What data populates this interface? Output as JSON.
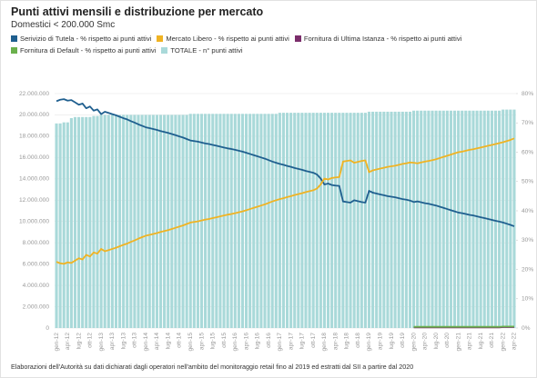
{
  "chart_data": {
    "type": "bar",
    "title": "Punti attivi mensili e distribuzione per mercato",
    "subtitle": "Domestici < 200.000 Smc",
    "note": "Elaborazioni dell'Autorità su dati dichiarati dagli operatori nell'ambito del monitoraggio retail fino al 2019 ed estratti dal SII a partire dal 2020",
    "categories": [
      "gen-12",
      null,
      null,
      "apr-12",
      null,
      null,
      "lug-12",
      null,
      null,
      "ott-12",
      null,
      null,
      "gen-13",
      null,
      null,
      "apr-13",
      null,
      null,
      "lug-13",
      null,
      null,
      "ott-13",
      null,
      null,
      "gen-14",
      null,
      null,
      "apr-14",
      null,
      null,
      "lug-14",
      null,
      null,
      "ott-14",
      null,
      null,
      "gen-15",
      null,
      null,
      "apr-15",
      null,
      null,
      "lug-15",
      null,
      null,
      "ott-15",
      null,
      null,
      "gen-16",
      null,
      null,
      "apr-16",
      null,
      null,
      "lug-16",
      null,
      null,
      "ott-16",
      null,
      null,
      "gen-17",
      null,
      null,
      "apr-17",
      null,
      null,
      "lug-17",
      null,
      null,
      "ott-17",
      null,
      null,
      "gen-18",
      null,
      null,
      "apr-18",
      null,
      null,
      "lug-18",
      null,
      null,
      "ott-18",
      null,
      null,
      "gen-19",
      null,
      null,
      "apr-19",
      null,
      null,
      "lug-19",
      null,
      null,
      "ott-19",
      null,
      null,
      "gen-20",
      null,
      null,
      "apr-20",
      null,
      null,
      "lug-20",
      null,
      null,
      "ott-20",
      null,
      null,
      "gen-21",
      null,
      null,
      "apr-21",
      null,
      null,
      "lug-21",
      null,
      null,
      "ott-21",
      null,
      null,
      "gen-22",
      null,
      null,
      "apr-22"
    ],
    "ylim": [
      0,
      22000000
    ],
    "yticks": [
      0,
      {
        "value": 2000000,
        "label": "2.000.000"
      },
      {
        "value": 4000000,
        "label": "4.000.000"
      },
      {
        "value": 6000000,
        "label": "6.000.000"
      },
      {
        "value": 8000000,
        "label": "8.000.000"
      },
      {
        "value": 10000000,
        "label": "10.000.000"
      },
      {
        "value": 12000000,
        "label": "12.000.000"
      },
      {
        "value": 14000000,
        "label": "14.000.000"
      },
      {
        "value": 16000000,
        "label": "16.000.000"
      },
      {
        "value": 18000000,
        "label": "18.000.000"
      },
      {
        "value": 20000000,
        "label": "20.000.000"
      },
      {
        "value": 22000000,
        "label": "22.000.000"
      }
    ],
    "y2lim": [
      0,
      80
    ],
    "y2ticks": [
      {
        "value": 0,
        "label": "0%"
      },
      {
        "value": 10,
        "label": "10%"
      },
      {
        "value": 20,
        "label": "20%"
      },
      {
        "value": 30,
        "label": "30%"
      },
      {
        "value": 40,
        "label": "40%"
      },
      {
        "value": 50,
        "label": "50%"
      },
      {
        "value": 60,
        "label": "60%"
      },
      {
        "value": 70,
        "label": "70%"
      },
      {
        "value": 80,
        "label": "80%"
      }
    ],
    "grid": true,
    "series": [
      {
        "name": "Serivizio di Tutela - % rispetto ai punti attivi",
        "type": "line",
        "axis": "y2",
        "color": "#1f5f8f",
        "values": [
          77.4,
          77.9,
          78.1,
          77.6,
          77.8,
          77.0,
          76.2,
          76.6,
          75.0,
          75.6,
          74.2,
          74.6,
          73.0,
          73.8,
          73.4,
          73.0,
          72.6,
          72.1,
          71.6,
          71.2,
          70.6,
          70.1,
          69.5,
          69.0,
          68.5,
          68.2,
          67.9,
          67.6,
          67.2,
          66.9,
          66.6,
          66.2,
          65.8,
          65.4,
          65.0,
          64.5,
          64.0,
          63.8,
          63.6,
          63.3,
          63.0,
          62.8,
          62.5,
          62.2,
          61.9,
          61.6,
          61.3,
          61.1,
          60.8,
          60.5,
          60.2,
          59.8,
          59.4,
          59.0,
          58.6,
          58.2,
          57.8,
          57.3,
          56.8,
          56.4,
          56.0,
          55.7,
          55.3,
          55.0,
          54.6,
          54.3,
          54.0,
          53.6,
          53.3,
          53.0,
          52.4,
          51.0,
          49.0,
          49.3,
          48.8,
          48.6,
          48.5,
          43.2,
          43.0,
          42.8,
          43.6,
          43.3,
          43.0,
          42.8,
          46.8,
          46.2,
          45.9,
          45.6,
          45.3,
          45.0,
          44.8,
          44.6,
          44.3,
          44.0,
          43.8,
          43.5,
          43.0,
          43.2,
          42.9,
          42.6,
          42.4,
          42.1,
          41.8,
          41.4,
          41.0,
          40.6,
          40.2,
          39.8,
          39.4,
          39.2,
          38.9,
          38.6,
          38.4,
          38.1,
          37.8,
          37.5,
          37.2,
          36.9,
          36.6,
          36.3,
          36.0,
          35.6,
          35.2,
          34.7
        ]
      },
      {
        "name": "Mercato Libero - % rispetto ai punti attivi",
        "type": "line",
        "axis": "y2",
        "color": "#f0b323",
        "values": [
          22.6,
          22.1,
          21.9,
          22.4,
          22.2,
          23.0,
          23.8,
          23.4,
          25.0,
          24.4,
          25.8,
          25.4,
          27.0,
          26.2,
          26.6,
          27.0,
          27.4,
          27.9,
          28.4,
          28.8,
          29.4,
          29.9,
          30.5,
          31.0,
          31.5,
          31.8,
          32.1,
          32.4,
          32.8,
          33.1,
          33.4,
          33.8,
          34.2,
          34.6,
          35.0,
          35.5,
          36.0,
          36.2,
          36.4,
          36.7,
          37.0,
          37.2,
          37.5,
          37.8,
          38.1,
          38.4,
          38.7,
          38.9,
          39.2,
          39.5,
          39.8,
          40.2,
          40.6,
          41.0,
          41.4,
          41.8,
          42.2,
          42.7,
          43.2,
          43.6,
          44.0,
          44.3,
          44.7,
          45.0,
          45.4,
          45.7,
          46.0,
          46.4,
          46.7,
          47.0,
          47.6,
          49.0,
          51.0,
          50.7,
          51.2,
          51.4,
          51.5,
          56.8,
          57.0,
          57.2,
          56.4,
          56.7,
          57.0,
          57.2,
          53.2,
          53.8,
          54.1,
          54.4,
          54.7,
          55.0,
          55.2,
          55.4,
          55.7,
          56.0,
          56.2,
          56.5,
          56.4,
          56.2,
          56.5,
          56.8,
          57.0,
          57.3,
          57.6,
          58.0,
          58.4,
          58.8,
          59.2,
          59.6,
          60.0,
          60.2,
          60.5,
          60.8,
          61.0,
          61.3,
          61.6,
          61.9,
          62.2,
          62.5,
          62.8,
          63.1,
          63.4,
          63.8,
          64.2,
          64.7
        ]
      },
      {
        "name": "Fornitura di Ultima Istanza - % rispetto ai punti attivi",
        "type": "line",
        "axis": "y2",
        "color": "#7b2d6b",
        "values": [
          null,
          null,
          null,
          null,
          null,
          null,
          null,
          null,
          null,
          null,
          null,
          null,
          null,
          null,
          null,
          null,
          null,
          null,
          null,
          null,
          null,
          null,
          null,
          null,
          null,
          null,
          null,
          null,
          null,
          null,
          null,
          null,
          null,
          null,
          null,
          null,
          null,
          null,
          null,
          null,
          null,
          null,
          null,
          null,
          null,
          null,
          null,
          null,
          null,
          null,
          null,
          null,
          null,
          null,
          null,
          null,
          null,
          null,
          null,
          null,
          null,
          null,
          null,
          null,
          null,
          null,
          null,
          null,
          null,
          null,
          null,
          null,
          null,
          null,
          null,
          null,
          null,
          null,
          null,
          null,
          null,
          null,
          null,
          null,
          null,
          null,
          null,
          null,
          null,
          null,
          null,
          null,
          null,
          null,
          null,
          null,
          0.2,
          0.2,
          0.2,
          0.2,
          0.2,
          0.2,
          0.2,
          0.2,
          0.2,
          0.2,
          0.2,
          0.2,
          0.2,
          0.2,
          0.2,
          0.2,
          0.2,
          0.2,
          0.2,
          0.2,
          0.2,
          0.2,
          0.2,
          0.2,
          0.3,
          0.3,
          0.3,
          0.3
        ]
      },
      {
        "name": "Fornitura di Default - % rispetto ai punti attivi",
        "type": "line",
        "axis": "y2",
        "color": "#6ab04c",
        "values": [
          null,
          null,
          null,
          null,
          null,
          null,
          null,
          null,
          null,
          null,
          null,
          null,
          null,
          null,
          null,
          null,
          null,
          null,
          null,
          null,
          null,
          null,
          null,
          null,
          null,
          null,
          null,
          null,
          null,
          null,
          null,
          null,
          null,
          null,
          null,
          null,
          null,
          null,
          null,
          null,
          null,
          null,
          null,
          null,
          null,
          null,
          null,
          null,
          null,
          null,
          null,
          null,
          null,
          null,
          null,
          null,
          null,
          null,
          null,
          null,
          null,
          null,
          null,
          null,
          null,
          null,
          null,
          null,
          null,
          null,
          null,
          null,
          null,
          null,
          null,
          null,
          null,
          null,
          null,
          null,
          null,
          null,
          null,
          null,
          null,
          null,
          null,
          null,
          null,
          null,
          null,
          null,
          null,
          null,
          null,
          null,
          0.4,
          0.4,
          0.4,
          0.4,
          0.4,
          0.4,
          0.4,
          0.4,
          0.4,
          0.4,
          0.4,
          0.4,
          0.4,
          0.4,
          0.4,
          0.4,
          0.4,
          0.4,
          0.4,
          0.4,
          0.4,
          0.4,
          0.4,
          0.4,
          0.5,
          0.5,
          0.5,
          0.5
        ]
      },
      {
        "name": "TOTALE - n° punti attivi",
        "type": "bar",
        "color": "#a9d9d9",
        "values": [
          19200000,
          19200000,
          19300000,
          19300000,
          19700000,
          19800000,
          19800000,
          19800000,
          19800000,
          19800000,
          19900000,
          19900000,
          20000000,
          20000000,
          20000000,
          20000000,
          20000000,
          20000000,
          20000000,
          20000000,
          20000000,
          20000000,
          20000000,
          20000000,
          20000000,
          20000000,
          20000000,
          20000000,
          20000000,
          20000000,
          20000000,
          20000000,
          20000000,
          20000000,
          20000000,
          20000000,
          20100000,
          20100000,
          20100000,
          20100000,
          20100000,
          20100000,
          20100000,
          20100000,
          20100000,
          20100000,
          20100000,
          20100000,
          20100000,
          20100000,
          20100000,
          20100000,
          20100000,
          20100000,
          20100000,
          20100000,
          20100000,
          20100000,
          20100000,
          20100000,
          20200000,
          20200000,
          20200000,
          20200000,
          20200000,
          20200000,
          20200000,
          20200000,
          20200000,
          20200000,
          20200000,
          20200000,
          20200000,
          20200000,
          20200000,
          20200000,
          20200000,
          20200000,
          20200000,
          20200000,
          20200000,
          20200000,
          20200000,
          20200000,
          20300000,
          20300000,
          20300000,
          20300000,
          20300000,
          20300000,
          20300000,
          20300000,
          20300000,
          20300000,
          20300000,
          20300000,
          20400000,
          20400000,
          20400000,
          20400000,
          20400000,
          20400000,
          20400000,
          20400000,
          20400000,
          20400000,
          20400000,
          20400000,
          20400000,
          20400000,
          20400000,
          20400000,
          20400000,
          20400000,
          20400000,
          20400000,
          20400000,
          20400000,
          20400000,
          20400000,
          20500000,
          20500000,
          20500000,
          20500000
        ]
      }
    ]
  }
}
